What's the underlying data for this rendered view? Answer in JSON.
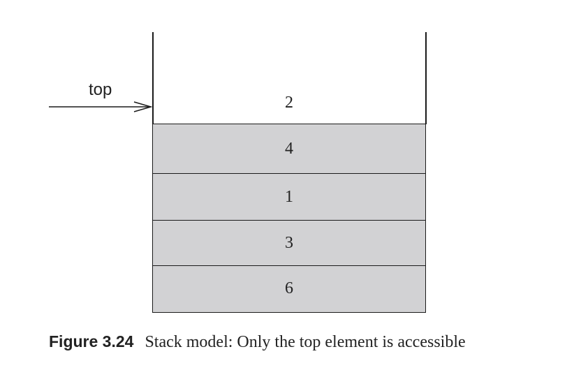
{
  "diagram": {
    "pointer_label": "top",
    "top_value": "2",
    "stack_items": [
      "4",
      "1",
      "3",
      "6"
    ],
    "fill_color": "#d2d2d4",
    "line_color": "#1a1a1a"
  },
  "caption": {
    "number": "Figure 3.24",
    "text": "Stack model: Only the top element is accessible"
  }
}
